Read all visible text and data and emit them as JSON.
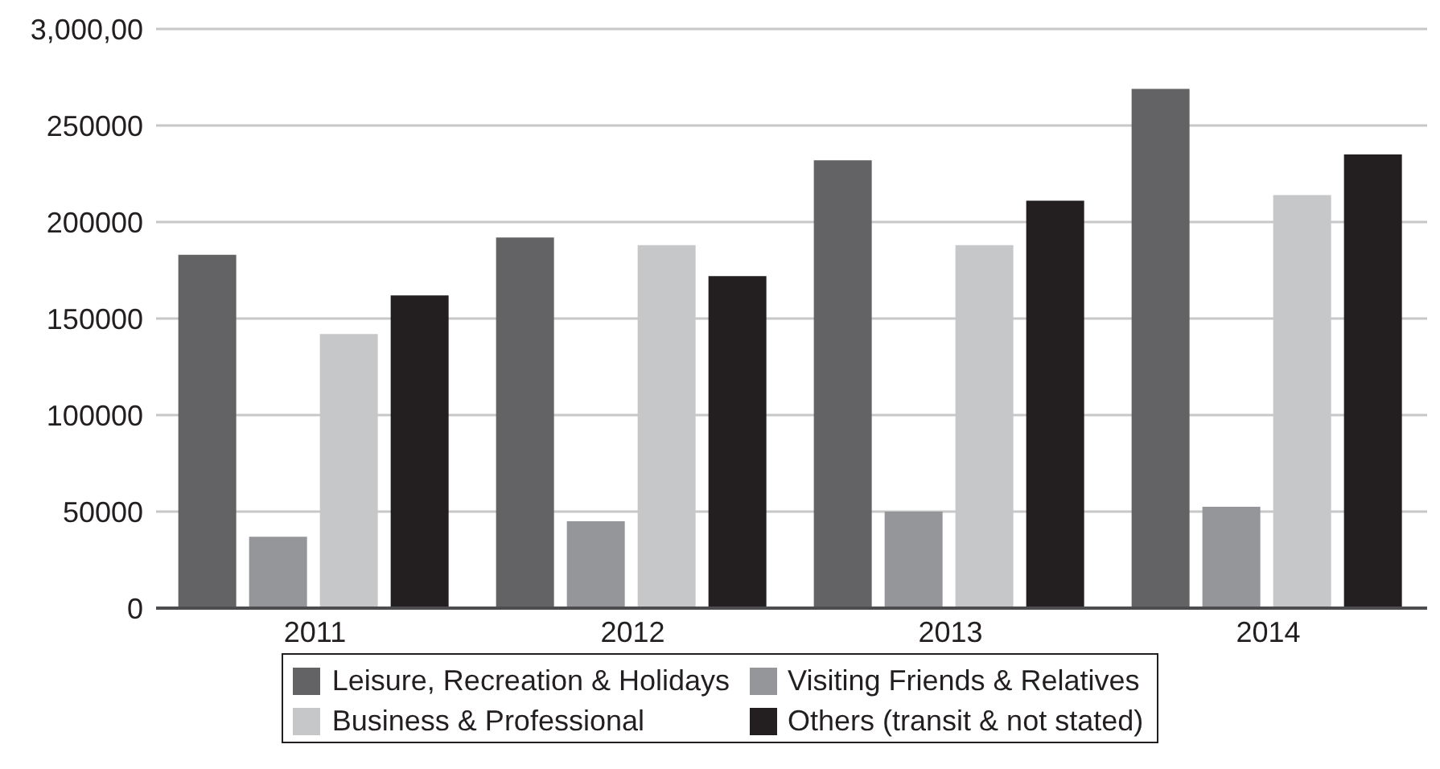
{
  "chart_data": {
    "type": "bar",
    "categories": [
      "2011",
      "2012",
      "2013",
      "2014"
    ],
    "series": [
      {
        "name": "Leisure, Recreation & Holidays",
        "color": "#636365",
        "values": [
          183000,
          192000,
          232000,
          269000
        ]
      },
      {
        "name": "Visiting Friends & Relatives",
        "color": "#959699",
        "values": [
          37000,
          45000,
          50000,
          52500
        ]
      },
      {
        "name": "Business & Professional",
        "color": "#c6c7c9",
        "values": [
          142000,
          188000,
          188000,
          214000
        ]
      },
      {
        "name": "Others (transit & not stated)",
        "color": "#231f20",
        "values": [
          162000,
          172000,
          211000,
          235000
        ]
      }
    ],
    "ylim": [
      0,
      300000
    ],
    "yticks": [
      0,
      50000,
      100000,
      150000,
      200000,
      250000,
      {
        "value": 300000,
        "label": "3,000,00"
      }
    ],
    "grid": "y",
    "legend": "bottom"
  }
}
